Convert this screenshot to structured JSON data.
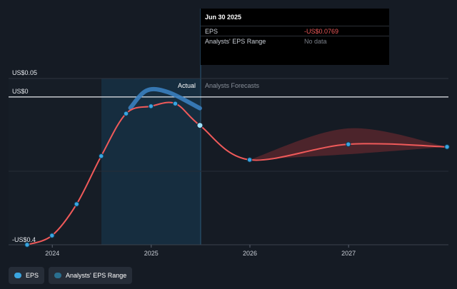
{
  "tooltip": {
    "date": "Jun 30 2025",
    "rows": [
      {
        "label": "EPS",
        "value": "-US$0.0769",
        "color": "#f05a5a"
      },
      {
        "label": "Analysts' EPS Range",
        "value": "No data",
        "color": "#7b808a"
      }
    ]
  },
  "section_labels": {
    "actual": "Actual",
    "forecast": "Analysts Forecasts"
  },
  "legend": [
    {
      "label": "EPS",
      "color": "#3aa5e0"
    },
    {
      "label": "Analysts' EPS Range",
      "color": "#2a6f8f"
    }
  ],
  "colors": {
    "eps_line": "#f05a5a",
    "point": "#3aa5e0",
    "range_fill": "#7a2b32",
    "actual_band": "#163044",
    "actual_range_line": "#3a7fbf"
  },
  "chart_data": {
    "type": "line",
    "y_tick_labels": [
      {
        "value": 0.05,
        "label": "US$0.05"
      },
      {
        "value": 0,
        "label": "US$0"
      },
      {
        "value": -0.4,
        "label": "-US$0.4"
      }
    ],
    "ylim": [
      -0.4,
      0.05
    ],
    "x_ticks": [
      "2024",
      "2025",
      "2026",
      "2027"
    ],
    "xlim": [
      "2023-09-30",
      "2027-12-31"
    ],
    "series": [
      {
        "name": "EPS",
        "points": [
          {
            "x": "2023-09-30",
            "y": -0.4
          },
          {
            "x": "2023-12-31",
            "y": -0.375
          },
          {
            "x": "2024-03-31",
            "y": -0.29
          },
          {
            "x": "2024-06-30",
            "y": -0.16
          },
          {
            "x": "2024-09-30",
            "y": -0.045
          },
          {
            "x": "2024-12-31",
            "y": -0.025
          },
          {
            "x": "2025-03-31",
            "y": -0.018
          },
          {
            "x": "2025-06-30",
            "y": -0.0769
          },
          {
            "x": "2025-12-31",
            "y": -0.17
          },
          {
            "x": "2026-12-31",
            "y": -0.128
          },
          {
            "x": "2027-12-31",
            "y": -0.135
          }
        ]
      },
      {
        "name": "Analysts' EPS Range",
        "range": [
          {
            "x": "2025-12-31",
            "low": -0.17,
            "high": -0.17
          },
          {
            "x": "2026-12-31",
            "low": -0.155,
            "high": -0.085
          },
          {
            "x": "2027-12-31",
            "low": -0.135,
            "high": -0.135
          }
        ]
      }
    ]
  }
}
